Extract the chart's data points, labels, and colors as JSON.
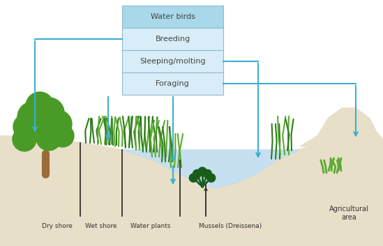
{
  "ground_color": "#e8dfc8",
  "water_color": "#c0ddf0",
  "arrow_color": "#3ab0d0",
  "box_header_color": "#a8d8ea",
  "box_row_color": "#d8edf8",
  "box_border_color": "#90b8cc",
  "box_labels": [
    "Water birds",
    "Breeding",
    "Sleeping/molting",
    "Foraging"
  ],
  "bottom_labels": [
    "Dry shore",
    "Wet shore",
    "Water plants",
    "Mussels (Dreissena)"
  ],
  "agri_label": "Agricultural\narea",
  "tree_trunk_color": "#9B6B3A",
  "tree_foliage_color": "#4a9a28",
  "grass_dark": "#2d7a18",
  "grass_light": "#5aaa30"
}
